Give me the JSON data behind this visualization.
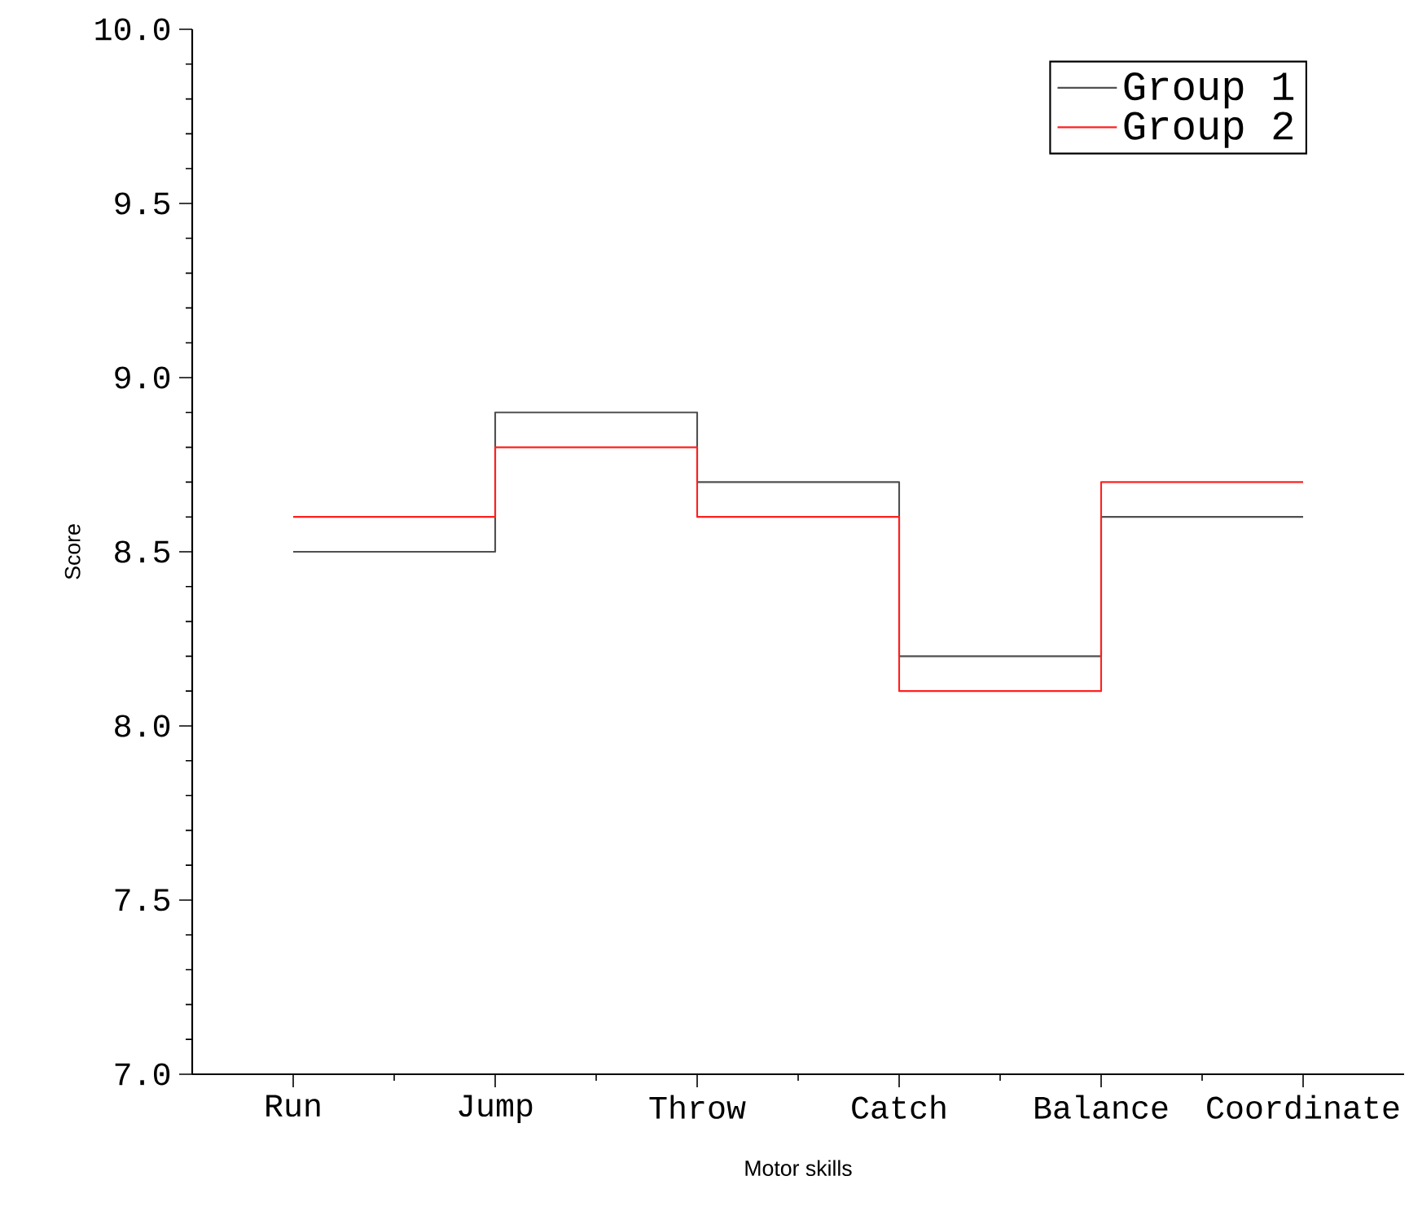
{
  "chart_data": {
    "type": "step",
    "xlabel": "Motor skills",
    "ylabel": "Score",
    "categories": [
      "Run",
      "Jump",
      "Throw",
      "Catch",
      "Balance",
      "Coordinate"
    ],
    "series": [
      {
        "name": "Group 1",
        "color": "#505050",
        "values": [
          8.5,
          8.9,
          8.7,
          8.2,
          8.6,
          8.6
        ]
      },
      {
        "name": "Group 2",
        "color": "#ff2020",
        "values": [
          8.6,
          8.8,
          8.6,
          8.1,
          8.7,
          8.7
        ]
      }
    ],
    "ylim": [
      7.0,
      10.0
    ],
    "yticks": [
      {
        "value": 7.0,
        "label": "7.0"
      },
      {
        "value": 7.5,
        "label": "7.5"
      },
      {
        "value": 8.0,
        "label": "8.0"
      },
      {
        "value": 8.5,
        "label": "8.5"
      },
      {
        "value": 9.0,
        "label": "9.0"
      },
      {
        "value": 9.5,
        "label": "9.5"
      },
      {
        "value": 10.0,
        "label": "10.0"
      }
    ],
    "legend": "top right",
    "grid": false
  }
}
